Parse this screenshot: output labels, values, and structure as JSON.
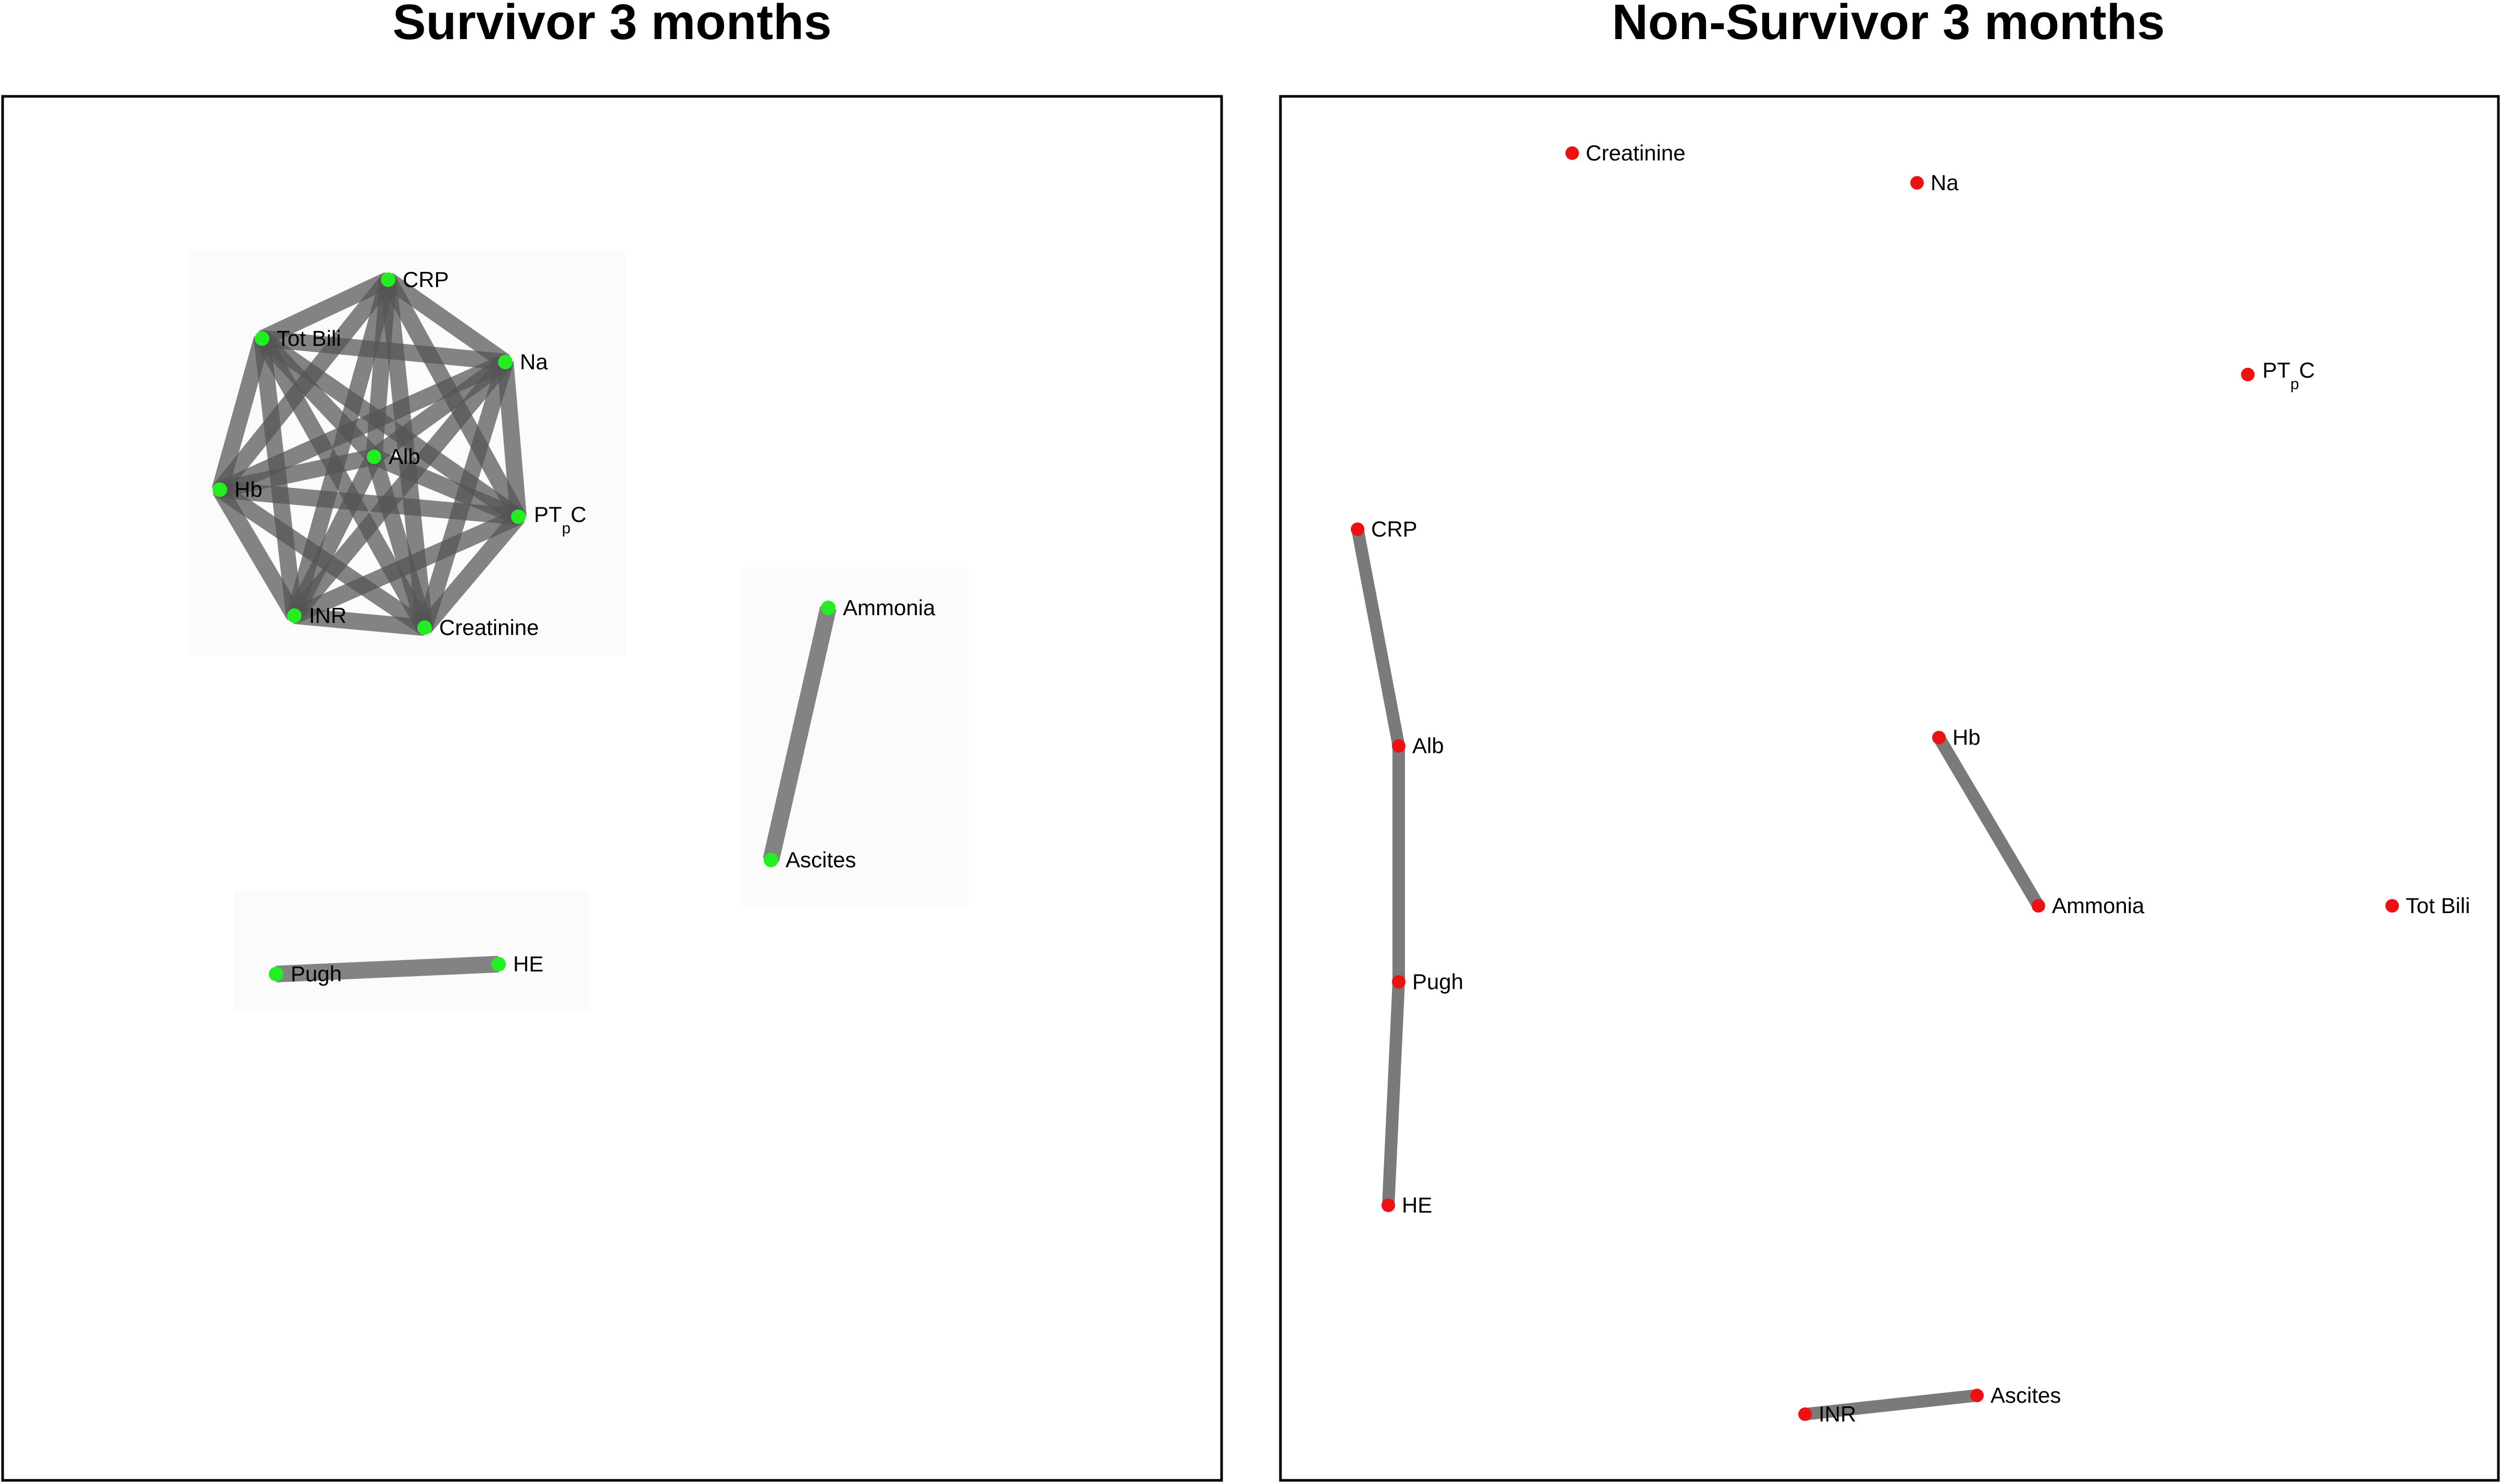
{
  "colors": {
    "survivor_node": "#22ee22",
    "nonsurvivor_node": "#ee1111",
    "edge": "#555555"
  },
  "panels": [
    {
      "id": "survivor",
      "title": "Survivor 3 months",
      "node_color": "#22ee22",
      "nodes": [
        {
          "id": "crp",
          "label": "CRP"
        },
        {
          "id": "totbili",
          "label": "Tot Bili"
        },
        {
          "id": "na",
          "label": "Na"
        },
        {
          "id": "alb",
          "label": "Alb"
        },
        {
          "id": "hb",
          "label": "Hb"
        },
        {
          "id": "ptpc",
          "label": "PT",
          "sub": "p",
          "tail": "C"
        },
        {
          "id": "inr",
          "label": "INR"
        },
        {
          "id": "creatinine",
          "label": "Creatinine"
        },
        {
          "id": "ammonia",
          "label": "Ammonia"
        },
        {
          "id": "ascites",
          "label": "Ascites"
        },
        {
          "id": "pugh",
          "label": "Pugh"
        },
        {
          "id": "he",
          "label": "HE"
        }
      ],
      "edges": [
        [
          "crp",
          "totbili"
        ],
        [
          "crp",
          "na"
        ],
        [
          "crp",
          "alb"
        ],
        [
          "crp",
          "hb"
        ],
        [
          "crp",
          "ptpc"
        ],
        [
          "crp",
          "inr"
        ],
        [
          "crp",
          "creatinine"
        ],
        [
          "totbili",
          "na"
        ],
        [
          "totbili",
          "alb"
        ],
        [
          "totbili",
          "hb"
        ],
        [
          "totbili",
          "ptpc"
        ],
        [
          "totbili",
          "inr"
        ],
        [
          "totbili",
          "creatinine"
        ],
        [
          "na",
          "alb"
        ],
        [
          "na",
          "hb"
        ],
        [
          "na",
          "ptpc"
        ],
        [
          "na",
          "inr"
        ],
        [
          "na",
          "creatinine"
        ],
        [
          "alb",
          "hb"
        ],
        [
          "alb",
          "ptpc"
        ],
        [
          "alb",
          "inr"
        ],
        [
          "alb",
          "creatinine"
        ],
        [
          "hb",
          "ptpc"
        ],
        [
          "hb",
          "inr"
        ],
        [
          "hb",
          "creatinine"
        ],
        [
          "ptpc",
          "inr"
        ],
        [
          "ptpc",
          "creatinine"
        ],
        [
          "inr",
          "creatinine"
        ],
        [
          "ammonia",
          "ascites"
        ],
        [
          "pugh",
          "he"
        ]
      ]
    },
    {
      "id": "nonsurvivor",
      "title": "Non-Survivor 3 months",
      "node_color": "#ee1111",
      "nodes": [
        {
          "id": "creatinine",
          "label": "Creatinine"
        },
        {
          "id": "na",
          "label": "Na"
        },
        {
          "id": "ptpc",
          "label": "PT",
          "sub": "p",
          "tail": "C"
        },
        {
          "id": "crp",
          "label": "CRP"
        },
        {
          "id": "alb",
          "label": "Alb"
        },
        {
          "id": "hb",
          "label": "Hb"
        },
        {
          "id": "ammonia",
          "label": "Ammonia"
        },
        {
          "id": "totbili",
          "label": "Tot Bili"
        },
        {
          "id": "pugh",
          "label": "Pugh"
        },
        {
          "id": "he",
          "label": "HE"
        },
        {
          "id": "inr",
          "label": "INR"
        },
        {
          "id": "ascites",
          "label": "Ascites"
        }
      ],
      "edges": [
        [
          "crp",
          "alb"
        ],
        [
          "alb",
          "pugh"
        ],
        [
          "pugh",
          "he"
        ],
        [
          "hb",
          "ammonia"
        ],
        [
          "inr",
          "ascites"
        ]
      ]
    }
  ]
}
